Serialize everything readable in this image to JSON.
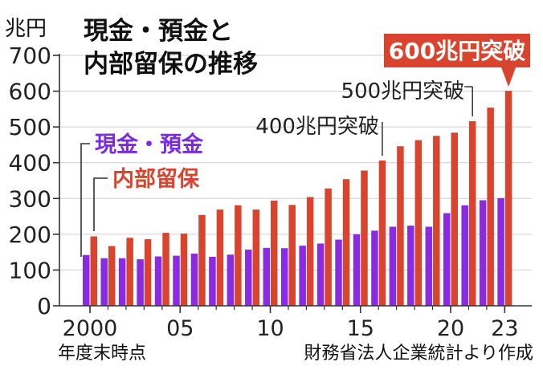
{
  "chart_data": {
    "type": "bar",
    "title_lines": [
      "現金・預金と",
      "内部留保の推移"
    ],
    "y_unit": "兆円",
    "x_caption": "年度末時点",
    "source": "財務省法人企業統計より作成",
    "ylim": [
      0,
      700
    ],
    "yticks": [
      "0",
      "100",
      "200",
      "300",
      "400",
      "500",
      "600",
      "700"
    ],
    "xtick_labels": [
      {
        "year": 2000,
        "label": "2000"
      },
      {
        "year": 2005,
        "label": "05"
      },
      {
        "year": 2010,
        "label": "10"
      },
      {
        "year": 2015,
        "label": "15"
      },
      {
        "year": 2020,
        "label": "20"
      },
      {
        "year": 2023,
        "label": "23"
      }
    ],
    "years": [
      2000,
      2001,
      2002,
      2003,
      2004,
      2005,
      2006,
      2007,
      2008,
      2009,
      2010,
      2011,
      2012,
      2013,
      2014,
      2015,
      2016,
      2017,
      2018,
      2019,
      2020,
      2021,
      2022,
      2023
    ],
    "series": [
      {
        "name": "現金・預金",
        "color": "#8a2be2",
        "values": [
          142,
          133,
          133,
          130,
          138,
          140,
          146,
          137,
          143,
          157,
          162,
          161,
          168,
          174,
          185,
          200,
          210,
          221,
          224,
          221,
          259,
          281,
          295,
          301
        ]
      },
      {
        "name": "内部留保",
        "color": "#d9442e",
        "values": [
          194,
          167,
          190,
          186,
          204,
          202,
          254,
          269,
          281,
          269,
          294,
          282,
          304,
          328,
          354,
          378,
          406,
          446,
          463,
          475,
          484,
          516,
          554,
          601
        ]
      }
    ],
    "annotations": [
      {
        "text": "400兆円突破",
        "year": 2016
      },
      {
        "text": "500兆円突破",
        "year": 2021
      },
      {
        "text": "600兆円突破",
        "year": 2023,
        "highlight": true
      }
    ]
  }
}
